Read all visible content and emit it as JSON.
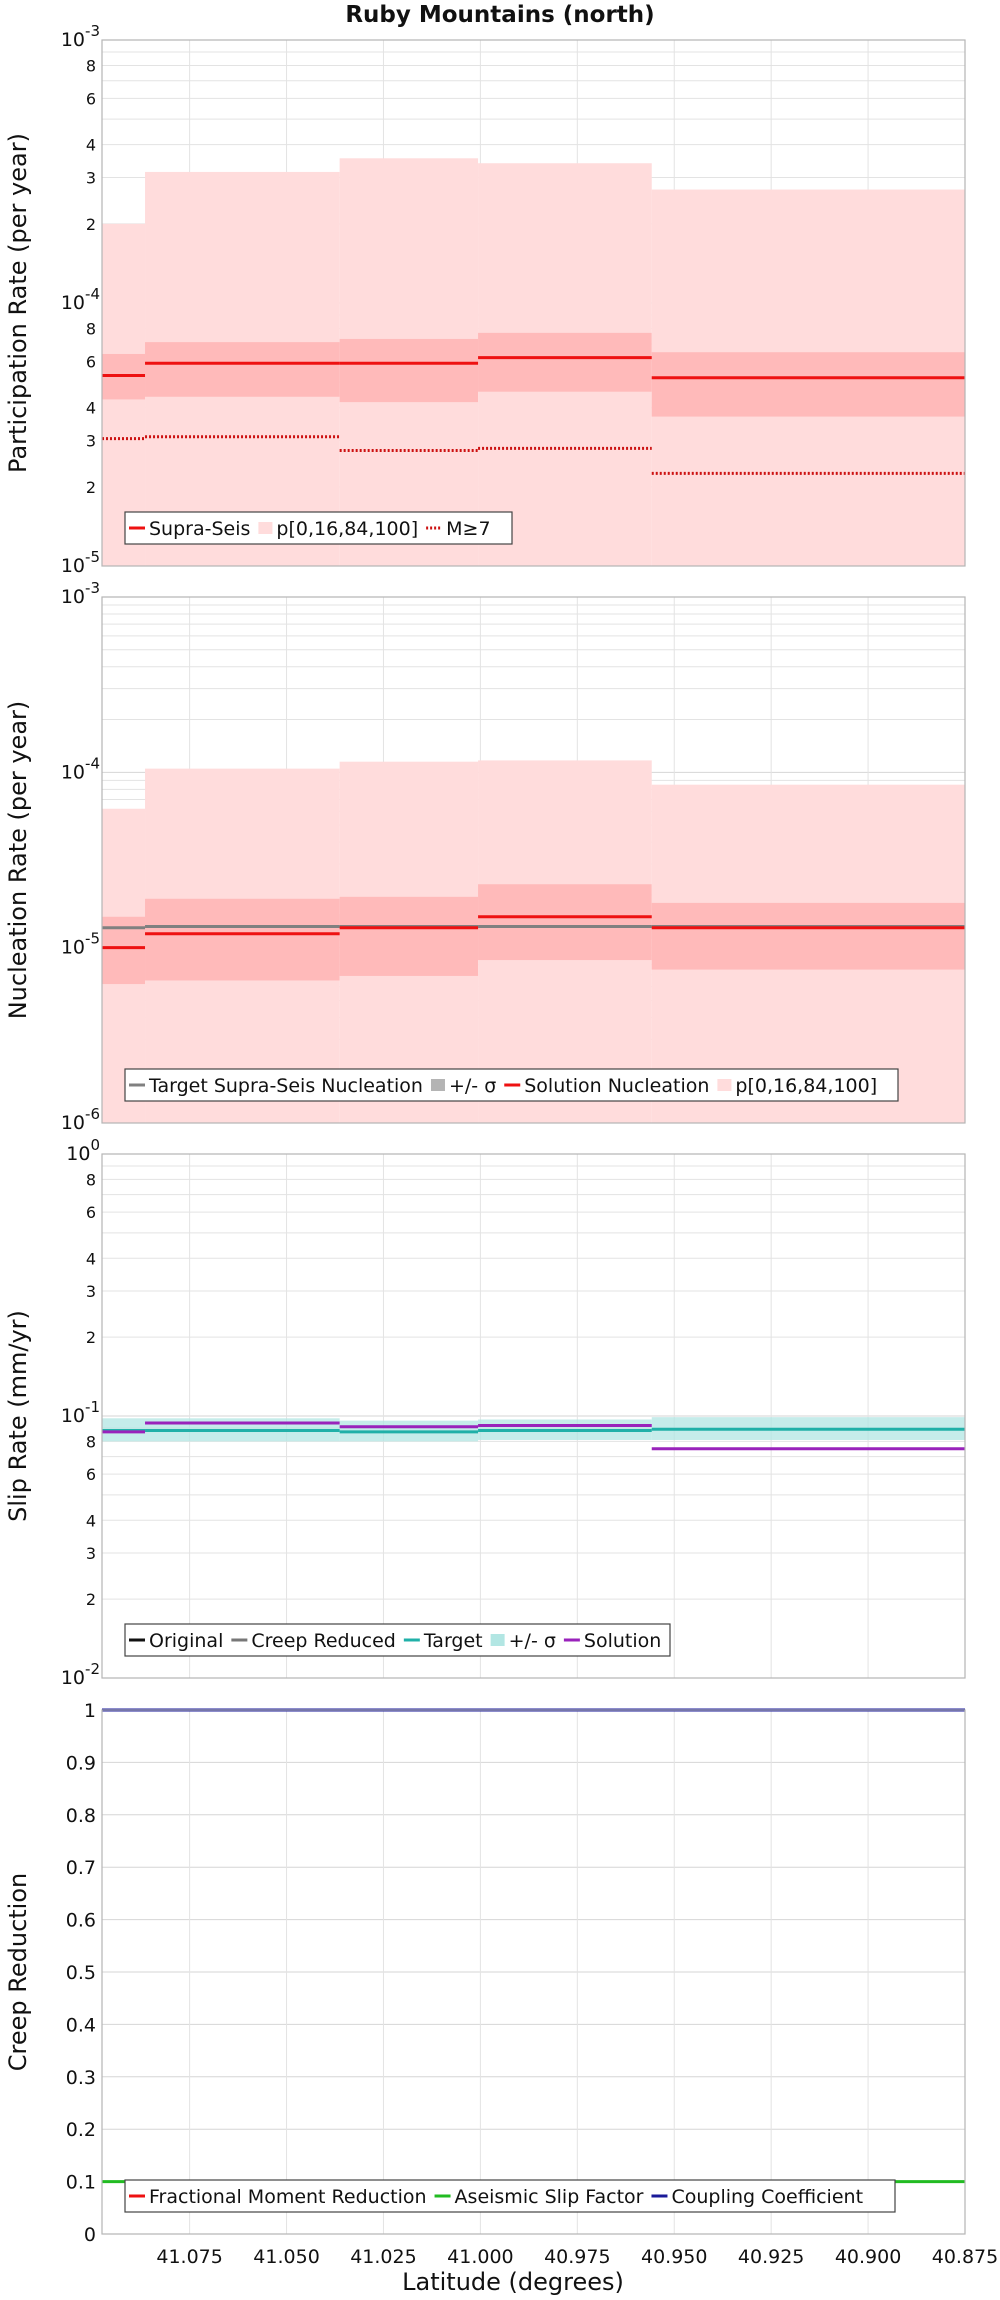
{
  "title": "Ruby Mountains (north)",
  "xlabel": "Latitude (degrees)",
  "x_ticks": [
    "41.075",
    "41.050",
    "41.025",
    "41.000",
    "40.975",
    "40.950",
    "40.925",
    "40.900",
    "40.875"
  ],
  "chart_data": [
    {
      "type": "line",
      "ylabel": "Participation Rate (per year)",
      "yscale": "log",
      "ylim": [
        1e-05,
        0.001
      ],
      "xlim": [
        41.0976,
        40.875
      ],
      "grid": true,
      "legend_placement": "bottom-left",
      "segments": [
        41.0976,
        41.0865,
        41.0363,
        41.0006,
        40.9558,
        40.875
      ],
      "series": [
        {
          "name": "Supra-Seis",
          "color": "#ee1111",
          "style": "solid",
          "values": [
            5.3e-05,
            5.9e-05,
            5.9e-05,
            6.2e-05,
            5.2e-05
          ]
        },
        {
          "name": "p[0,16,84,100]",
          "color": "#ffdcdc",
          "style": "band",
          "min": [
            1e-05,
            1e-05,
            1e-05,
            1e-05,
            1e-05
          ],
          "p16": [
            4.3e-05,
            4.4e-05,
            4.2e-05,
            4.6e-05,
            3.7e-05
          ],
          "p84": [
            6.4e-05,
            7.1e-05,
            7.3e-05,
            7.7e-05,
            6.5e-05
          ],
          "max": [
            0.0002,
            0.000315,
            0.000355,
            0.00034,
            0.00027
          ]
        },
        {
          "name": "M≥7",
          "color": "#cc1111",
          "style": "dotted",
          "values": [
            3.05e-05,
            3.1e-05,
            2.75e-05,
            2.8e-05,
            2.25e-05
          ]
        }
      ]
    },
    {
      "type": "line",
      "ylabel": "Nucleation Rate (per year)",
      "yscale": "log",
      "ylim": [
        1e-06,
        0.001
      ],
      "xlim": [
        41.0976,
        40.875
      ],
      "grid": true,
      "legend_placement": "bottom-left",
      "segments": [
        41.0976,
        41.0865,
        41.0363,
        41.0006,
        40.9558,
        40.875
      ],
      "series": [
        {
          "name": "Target Supra-Seis Nucleation",
          "color": "#808080",
          "style": "solid",
          "values": [
            1.3e-05,
            1.32e-05,
            1.32e-05,
            1.32e-05,
            1.32e-05
          ]
        },
        {
          "name": "+/- σ",
          "color": "#b4b4b4",
          "style": "band",
          "lower": [
            1.1e-05,
            1.12e-05,
            1.1e-05,
            1.12e-05,
            1.12e-05
          ],
          "upper": [
            1.5e-05,
            1.55e-05,
            1.55e-05,
            1.55e-05,
            1.55e-05
          ]
        },
        {
          "name": "Solution Nucleation",
          "color": "#ee1111",
          "style": "solid",
          "values": [
            1e-05,
            1.2e-05,
            1.3e-05,
            1.5e-05,
            1.3e-05
          ]
        },
        {
          "name": "p[0,16,84,100]",
          "color": "#ffdcdc",
          "style": "band",
          "min": [
            1e-06,
            1e-06,
            1e-06,
            1e-06,
            1e-06
          ],
          "p16": [
            6.2e-06,
            6.5e-06,
            6.9e-06,
            8.5e-06,
            7.5e-06
          ],
          "p84": [
            1.5e-05,
            1.9e-05,
            1.95e-05,
            2.3e-05,
            1.8e-05
          ],
          "max": [
            6.2e-05,
            0.000105,
            0.000115,
            0.000117,
            8.5e-05
          ]
        }
      ]
    },
    {
      "type": "line",
      "ylabel": "Slip Rate (mm/yr)",
      "yscale": "log",
      "ylim": [
        0.01,
        1
      ],
      "xlim": [
        41.0976,
        40.875
      ],
      "grid": true,
      "legend_placement": "bottom-left",
      "segments": [
        41.0976,
        41.0865,
        41.0363,
        41.0006,
        40.9558,
        40.875
      ],
      "series": [
        {
          "name": "Original",
          "color": "#111111",
          "style": "legend-only"
        },
        {
          "name": "Creep Reduced",
          "color": "#777777",
          "style": "legend-only"
        },
        {
          "name": "Target",
          "color": "#20b0a8",
          "style": "solid",
          "values": [
            0.088,
            0.088,
            0.087,
            0.088,
            0.089
          ]
        },
        {
          "name": "+/- σ",
          "color": "#b2e6e3",
          "style": "band",
          "lower": [
            0.08,
            0.08,
            0.08,
            0.081,
            0.081
          ],
          "upper": [
            0.098,
            0.098,
            0.096,
            0.097,
            0.099
          ]
        },
        {
          "name": "Solution",
          "color": "#9922bb",
          "style": "solid",
          "values": [
            0.087,
            0.094,
            0.091,
            0.092,
            0.075
          ]
        }
      ]
    },
    {
      "type": "line",
      "ylabel": "Creep Reduction",
      "yscale": "linear",
      "ylim": [
        0,
        1
      ],
      "xlim": [
        41.0976,
        40.875
      ],
      "grid": true,
      "legend_placement": "bottom-left",
      "segments": [
        41.0976,
        40.875
      ],
      "series": [
        {
          "name": "Fractional Moment Reduction",
          "color": "#ee1111",
          "style": "legend-only"
        },
        {
          "name": "Aseismic Slip Factor",
          "color": "#22bb22",
          "style": "solid",
          "values": [
            0.1
          ]
        },
        {
          "name": "Coupling Coefficient",
          "color": "#1a1a99",
          "style": "solid",
          "values": [
            1.0
          ]
        }
      ]
    }
  ],
  "panels": [
    {
      "y_major": [
        {
          "label": "10",
          "exp": "-3",
          "value": 0.001
        },
        {
          "label": "10",
          "exp": "-4",
          "value": 0.0001
        },
        {
          "label": "10",
          "exp": "-5",
          "value": 1e-05
        }
      ],
      "y_minor": [
        {
          "label": "8",
          "value": 0.0008
        },
        {
          "label": "6",
          "value": 0.0006
        },
        {
          "label": "4",
          "value": 0.0004
        },
        {
          "label": "3",
          "value": 0.0003
        },
        {
          "label": "2",
          "value": 0.0002
        },
        {
          "label": "8",
          "value": 8e-05
        },
        {
          "label": "6",
          "value": 6e-05
        },
        {
          "label": "4",
          "value": 4e-05
        },
        {
          "label": "3",
          "value": 3e-05
        },
        {
          "label": "2",
          "value": 2e-05
        }
      ]
    },
    {
      "y_major": [
        {
          "label": "10",
          "exp": "-3",
          "value": 0.001
        },
        {
          "label": "10",
          "exp": "-4",
          "value": 0.0001
        },
        {
          "label": "10",
          "exp": "-5",
          "value": 1e-05
        },
        {
          "label": "10",
          "exp": "-6",
          "value": 1e-06
        }
      ],
      "y_minor": []
    },
    {
      "y_major": [
        {
          "label": "10",
          "exp": "0",
          "value": 1
        },
        {
          "label": "10",
          "exp": "-1",
          "value": 0.1
        },
        {
          "label": "10",
          "exp": "-2",
          "value": 0.01
        }
      ],
      "y_minor": [
        {
          "label": "8",
          "value": 0.8
        },
        {
          "label": "6",
          "value": 0.6
        },
        {
          "label": "4",
          "value": 0.4
        },
        {
          "label": "3",
          "value": 0.3
        },
        {
          "label": "2",
          "value": 0.2
        },
        {
          "label": "8",
          "value": 0.08
        },
        {
          "label": "6",
          "value": 0.06
        },
        {
          "label": "4",
          "value": 0.04
        },
        {
          "label": "3",
          "value": 0.03
        },
        {
          "label": "2",
          "value": 0.02
        }
      ]
    },
    {
      "y_major": [
        {
          "label": "1",
          "value": 1
        },
        {
          "label": "0.9",
          "value": 0.9
        },
        {
          "label": "0.8",
          "value": 0.8
        },
        {
          "label": "0.7",
          "value": 0.7
        },
        {
          "label": "0.6",
          "value": 0.6
        },
        {
          "label": "0.5",
          "value": 0.5
        },
        {
          "label": "0.4",
          "value": 0.4
        },
        {
          "label": "0.3",
          "value": 0.3
        },
        {
          "label": "0.2",
          "value": 0.2
        },
        {
          "label": "0.1",
          "value": 0.1
        },
        {
          "label": "0",
          "value": 0
        }
      ],
      "y_minor": []
    }
  ]
}
